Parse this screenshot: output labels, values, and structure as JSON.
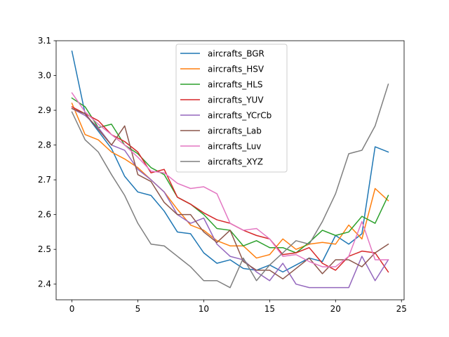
{
  "chart_data": {
    "type": "line",
    "title": "",
    "xlabel": "",
    "ylabel": "",
    "xlim": [
      -1.2,
      25.2
    ],
    "ylim": [
      2.355,
      3.1
    ],
    "xticks": [
      0,
      5,
      10,
      15,
      20,
      25
    ],
    "yticks": [
      2.4,
      2.5,
      2.6,
      2.7,
      2.8,
      2.9,
      3.0,
      3.1
    ],
    "xtick_labels": [
      "0",
      "5",
      "10",
      "15",
      "20",
      "25"
    ],
    "ytick_labels": [
      "2.4",
      "2.5",
      "2.6",
      "2.7",
      "2.8",
      "2.9",
      "3.0",
      "3.1"
    ],
    "grid": false,
    "legend_position": "top-center",
    "x": [
      0,
      1,
      2,
      3,
      4,
      5,
      6,
      7,
      8,
      9,
      10,
      11,
      12,
      13,
      14,
      15,
      16,
      17,
      18,
      19,
      20,
      21,
      22,
      23,
      24
    ],
    "series": [
      {
        "name": "aircrafts_BGR",
        "color": "#1f77b4",
        "values": [
          3.07,
          2.89,
          2.84,
          2.79,
          2.71,
          2.665,
          2.655,
          2.61,
          2.55,
          2.545,
          2.49,
          2.46,
          2.47,
          2.445,
          2.44,
          2.455,
          2.435,
          2.455,
          2.475,
          2.465,
          2.54,
          2.515,
          2.545,
          2.795,
          2.78
        ]
      },
      {
        "name": "aircrafts_HSV",
        "color": "#ff7f0e",
        "values": [
          2.92,
          2.83,
          2.815,
          2.78,
          2.76,
          2.735,
          2.7,
          2.665,
          2.615,
          2.57,
          2.555,
          2.525,
          2.51,
          2.51,
          2.475,
          2.485,
          2.53,
          2.5,
          2.515,
          2.52,
          2.515,
          2.57,
          2.53,
          2.675,
          2.64
        ]
      },
      {
        "name": "aircrafts_HLS",
        "color": "#2ca02c",
        "values": [
          2.935,
          2.91,
          2.85,
          2.86,
          2.8,
          2.775,
          2.735,
          2.715,
          2.65,
          2.63,
          2.6,
          2.56,
          2.555,
          2.51,
          2.525,
          2.505,
          2.505,
          2.49,
          2.52,
          2.555,
          2.54,
          2.55,
          2.595,
          2.575,
          2.655
        ]
      },
      {
        "name": "aircrafts_YUV",
        "color": "#d62728",
        "values": [
          2.91,
          2.89,
          2.87,
          2.83,
          2.81,
          2.78,
          2.72,
          2.73,
          2.65,
          2.63,
          2.605,
          2.585,
          2.575,
          2.555,
          2.54,
          2.53,
          2.485,
          2.49,
          2.505,
          2.46,
          2.44,
          2.48,
          2.495,
          2.49,
          2.435
        ]
      },
      {
        "name": "aircrafts_YCrCb",
        "color": "#9467bd",
        "values": [
          2.905,
          2.885,
          2.85,
          2.8,
          2.785,
          2.73,
          2.7,
          2.665,
          2.6,
          2.575,
          2.59,
          2.515,
          2.48,
          2.47,
          2.435,
          2.41,
          2.46,
          2.4,
          2.39,
          2.39,
          2.39,
          2.39,
          2.48,
          2.41,
          2.47
        ]
      },
      {
        "name": "aircrafts_Lab",
        "color": "#8c564b",
        "values": [
          2.905,
          2.89,
          2.845,
          2.8,
          2.855,
          2.715,
          2.695,
          2.635,
          2.6,
          2.6,
          2.55,
          2.52,
          2.555,
          2.465,
          2.44,
          2.44,
          2.415,
          2.445,
          2.475,
          2.43,
          2.47,
          2.47,
          2.45,
          2.49,
          2.515
        ]
      },
      {
        "name": "aircrafts_Luv",
        "color": "#e377c2",
        "values": [
          2.95,
          2.895,
          2.86,
          2.83,
          2.8,
          2.765,
          2.725,
          2.72,
          2.69,
          2.675,
          2.68,
          2.66,
          2.575,
          2.555,
          2.56,
          2.53,
          2.48,
          2.485,
          2.465,
          2.45,
          2.45,
          2.48,
          2.58,
          2.47,
          2.47
        ]
      },
      {
        "name": "aircrafts_XYZ",
        "color": "#7f7f7f",
        "values": [
          2.895,
          2.815,
          2.78,
          2.715,
          2.655,
          2.575,
          2.515,
          2.51,
          2.48,
          2.45,
          2.41,
          2.41,
          2.39,
          2.475,
          2.41,
          2.455,
          2.49,
          2.525,
          2.515,
          2.58,
          2.66,
          2.775,
          2.785,
          2.855,
          2.975
        ]
      }
    ]
  }
}
